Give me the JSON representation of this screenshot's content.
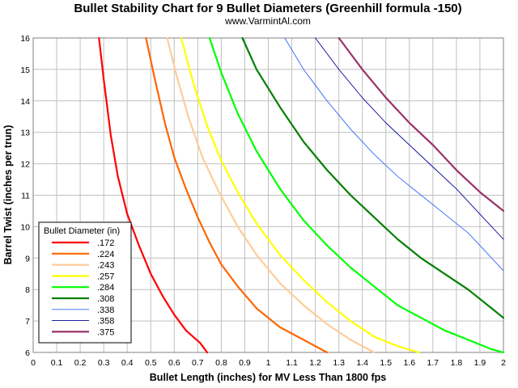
{
  "chart_data": {
    "type": "line",
    "title": "Bullet Stability Chart for 9 Bullet Diameters (Greenhill formula -150)",
    "subtitle": "www.VarmintAl.com",
    "xlabel": "Bullet Length (inches) for MV Less Than 1800 fps",
    "ylabel": "Barrel Twist (inches per trun)",
    "xlim": [
      0,
      2
    ],
    "ylim": [
      6,
      16
    ],
    "x_ticks": [
      "0",
      "0.1",
      "0.2",
      "0.3",
      "0.4",
      "0.5",
      "0.6",
      "0.7",
      "0.8",
      "0.9",
      "1",
      "1.1",
      "1.2",
      "1.3",
      "1.4",
      "1.5",
      "1.6",
      "1.7",
      "1.8",
      "1.9",
      "2"
    ],
    "y_ticks": [
      "6",
      "7",
      "8",
      "9",
      "10",
      "11",
      "12",
      "13",
      "14",
      "15",
      "16"
    ],
    "grid": true,
    "legend": {
      "title": "Bullet Diameter (in)",
      "position": "bottom-left"
    },
    "series": [
      {
        "name": ".172",
        "color": "#ff0000",
        "width": 2.2,
        "points": [
          [
            0.28,
            16
          ],
          [
            0.3,
            14.7
          ],
          [
            0.33,
            12.9
          ],
          [
            0.36,
            11.6
          ],
          [
            0.4,
            10.4
          ],
          [
            0.45,
            9.4
          ],
          [
            0.5,
            8.5
          ],
          [
            0.55,
            7.8
          ],
          [
            0.6,
            7.2
          ],
          [
            0.65,
            6.7
          ],
          [
            0.71,
            6.3
          ],
          [
            0.74,
            6.0
          ]
        ]
      },
      {
        "name": ".224",
        "color": "#ff6600",
        "width": 2.2,
        "points": [
          [
            0.48,
            16
          ],
          [
            0.52,
            14.6
          ],
          [
            0.56,
            13.3
          ],
          [
            0.6,
            12.2
          ],
          [
            0.65,
            11.2
          ],
          [
            0.7,
            10.3
          ],
          [
            0.75,
            9.5
          ],
          [
            0.8,
            8.8
          ],
          [
            0.87,
            8.1
          ],
          [
            0.95,
            7.4
          ],
          [
            1.05,
            6.8
          ],
          [
            1.15,
            6.4
          ],
          [
            1.25,
            6.0
          ]
        ]
      },
      {
        "name": ".243",
        "color": "#ffcc99",
        "width": 2.2,
        "points": [
          [
            0.57,
            16
          ],
          [
            0.61,
            14.8
          ],
          [
            0.66,
            13.5
          ],
          [
            0.72,
            12.2
          ],
          [
            0.79,
            11.1
          ],
          [
            0.87,
            10.0
          ],
          [
            0.95,
            9.1
          ],
          [
            1.05,
            8.2
          ],
          [
            1.15,
            7.5
          ],
          [
            1.25,
            6.9
          ],
          [
            1.35,
            6.4
          ],
          [
            1.45,
            6.0
          ]
        ]
      },
      {
        "name": ".257",
        "color": "#ffff00",
        "width": 2.2,
        "points": [
          [
            0.63,
            16
          ],
          [
            0.68,
            14.6
          ],
          [
            0.74,
            13.2
          ],
          [
            0.8,
            12.1
          ],
          [
            0.87,
            11.1
          ],
          [
            0.95,
            10.1
          ],
          [
            1.05,
            9.1
          ],
          [
            1.15,
            8.3
          ],
          [
            1.25,
            7.6
          ],
          [
            1.35,
            7.0
          ],
          [
            1.45,
            6.5
          ],
          [
            1.55,
            6.2
          ],
          [
            1.64,
            6.0
          ]
        ]
      },
      {
        "name": ".284",
        "color": "#00ff00",
        "width": 2.2,
        "points": [
          [
            0.75,
            16
          ],
          [
            0.8,
            14.9
          ],
          [
            0.87,
            13.6
          ],
          [
            0.95,
            12.4
          ],
          [
            1.05,
            11.2
          ],
          [
            1.15,
            10.2
          ],
          [
            1.25,
            9.4
          ],
          [
            1.35,
            8.7
          ],
          [
            1.45,
            8.1
          ],
          [
            1.55,
            7.5
          ],
          [
            1.65,
            7.1
          ],
          [
            1.75,
            6.7
          ],
          [
            1.85,
            6.4
          ],
          [
            1.95,
            6.1
          ],
          [
            2.0,
            6.0
          ]
        ]
      },
      {
        "name": ".308",
        "color": "#008000",
        "width": 2.2,
        "points": [
          [
            0.89,
            16
          ],
          [
            0.95,
            15.0
          ],
          [
            1.05,
            13.8
          ],
          [
            1.15,
            12.7
          ],
          [
            1.25,
            11.8
          ],
          [
            1.35,
            11.0
          ],
          [
            1.45,
            10.3
          ],
          [
            1.55,
            9.6
          ],
          [
            1.65,
            9.0
          ],
          [
            1.75,
            8.5
          ],
          [
            1.85,
            8.0
          ],
          [
            1.95,
            7.4
          ],
          [
            2.0,
            7.1
          ]
        ]
      },
      {
        "name": ".338",
        "color": "#3366ff",
        "width": 0.9,
        "points": [
          [
            1.07,
            16
          ],
          [
            1.15,
            15.0
          ],
          [
            1.25,
            14.0
          ],
          [
            1.35,
            13.1
          ],
          [
            1.45,
            12.3
          ],
          [
            1.55,
            11.6
          ],
          [
            1.65,
            11.0
          ],
          [
            1.75,
            10.4
          ],
          [
            1.85,
            9.8
          ],
          [
            1.95,
            9.0
          ],
          [
            2.0,
            8.6
          ]
        ]
      },
      {
        "name": ".358",
        "color": "#000099",
        "width": 0.9,
        "points": [
          [
            1.2,
            16
          ],
          [
            1.3,
            15.0
          ],
          [
            1.4,
            14.1
          ],
          [
            1.5,
            13.3
          ],
          [
            1.6,
            12.6
          ],
          [
            1.7,
            11.9
          ],
          [
            1.8,
            11.2
          ],
          [
            1.9,
            10.4
          ],
          [
            2.0,
            9.6
          ]
        ]
      },
      {
        "name": ".375",
        "color": "#993366",
        "width": 2.2,
        "points": [
          [
            1.3,
            16
          ],
          [
            1.4,
            15.0
          ],
          [
            1.5,
            14.1
          ],
          [
            1.6,
            13.3
          ],
          [
            1.7,
            12.6
          ],
          [
            1.8,
            11.8
          ],
          [
            1.9,
            11.1
          ],
          [
            2.0,
            10.5
          ]
        ]
      }
    ]
  }
}
